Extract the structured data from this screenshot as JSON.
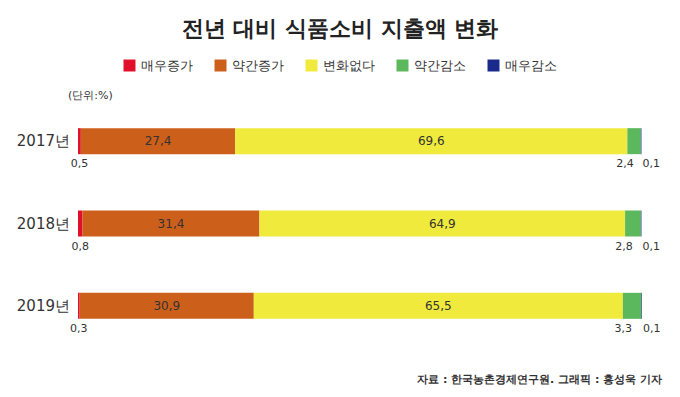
{
  "chart_data": {
    "type": "bar",
    "title": "전년 대비 식품소비 지출액 변화",
    "annotations": [
      "(단위:%)",
      "자료 : 한국농촌경제연구원. 그래픽 : 홍성욱 기자"
    ],
    "orientation": "horizontal",
    "stacked": true,
    "data_labels": true,
    "tick_labels": "y",
    "grid": false,
    "legend": "top",
    "categories": [
      "2017년",
      "2018년",
      "2019년"
    ],
    "xlim": [
      0,
      100.1
    ],
    "series": [
      {
        "name": "매우증가",
        "color": "#e0102a",
        "values": [
          0.5,
          0.8,
          0.3
        ],
        "value_labels": [
          "0,5",
          "0,8",
          "0,3"
        ]
      },
      {
        "name": "약간증가",
        "color": "#cc5f1a",
        "values": [
          27.4,
          31.4,
          30.9
        ],
        "value_labels": [
          "27,4",
          "31,4",
          "30,9"
        ]
      },
      {
        "name": "변화없다",
        "color": "#f0ea3c",
        "values": [
          69.6,
          64.9,
          65.5
        ],
        "value_labels": [
          "69,6",
          "64,9",
          "65,5"
        ]
      },
      {
        "name": "약간감소",
        "color": "#5cb85c",
        "values": [
          2.4,
          2.8,
          3.3
        ],
        "value_labels": [
          "2,4",
          "2,8",
          "3,3"
        ]
      },
      {
        "name": "매우감소",
        "color": "#1a2a8c",
        "values": [
          0.1,
          0.1,
          0.1
        ],
        "value_labels": [
          "0,1",
          "0,1",
          "0,1"
        ]
      }
    ]
  }
}
